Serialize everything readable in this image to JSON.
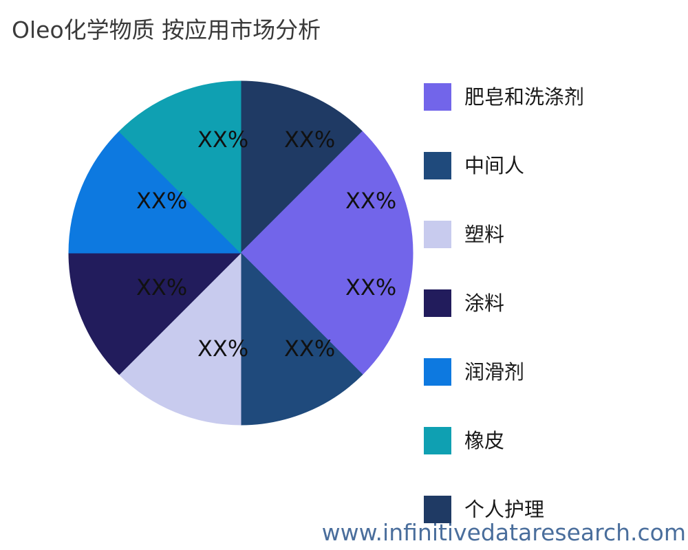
{
  "title": "Oleo化学物质 按应用市场分析",
  "watermark": "www.infinitivedataresearch.com",
  "colors": {
    "title_text": "#3a3a3a",
    "slice_label_text": "#111111",
    "watermark_text": "#4A6E9C",
    "background": "#ffffff"
  },
  "chart_data": {
    "type": "pie",
    "title": "Oleo化学物质 按应用市场分析",
    "value_label": "XX%",
    "start_angle_deg": 0,
    "direction": "clockwise",
    "legend_position": "right",
    "slices": [
      {
        "series": "个人护理",
        "value_pct": 12.5,
        "label": "XX%",
        "color": "#1F3A64"
      },
      {
        "series": "肥皂和洗涤剂",
        "value_pct": 12.5,
        "label": "XX%",
        "color": "#7265EA"
      },
      {
        "series": "肥皂和洗涤剂",
        "value_pct": 12.5,
        "label": "XX%",
        "color": "#7265EA"
      },
      {
        "series": "中间人",
        "value_pct": 12.5,
        "label": "XX%",
        "color": "#1F4A7C"
      },
      {
        "series": "塑料",
        "value_pct": 12.5,
        "label": "XX%",
        "color": "#C8CBEE"
      },
      {
        "series": "涂料",
        "value_pct": 12.5,
        "label": "XX%",
        "color": "#221C5C"
      },
      {
        "series": "润滑剂",
        "value_pct": 12.5,
        "label": "XX%",
        "color": "#0D79E0"
      },
      {
        "series": "橡皮",
        "value_pct": 12.5,
        "label": "XX%",
        "color": "#0FA0B2"
      }
    ],
    "legend": [
      {
        "label": "肥皂和洗涤剂",
        "color": "#7265EA"
      },
      {
        "label": "中间人",
        "color": "#1F4A7C"
      },
      {
        "label": "塑料",
        "color": "#C8CBEE"
      },
      {
        "label": "涂料",
        "color": "#221C5C"
      },
      {
        "label": "润滑剂",
        "color": "#0D79E0"
      },
      {
        "label": "橡皮",
        "color": "#0FA0B2"
      },
      {
        "label": "个人护理",
        "color": "#1F3A64"
      }
    ]
  }
}
